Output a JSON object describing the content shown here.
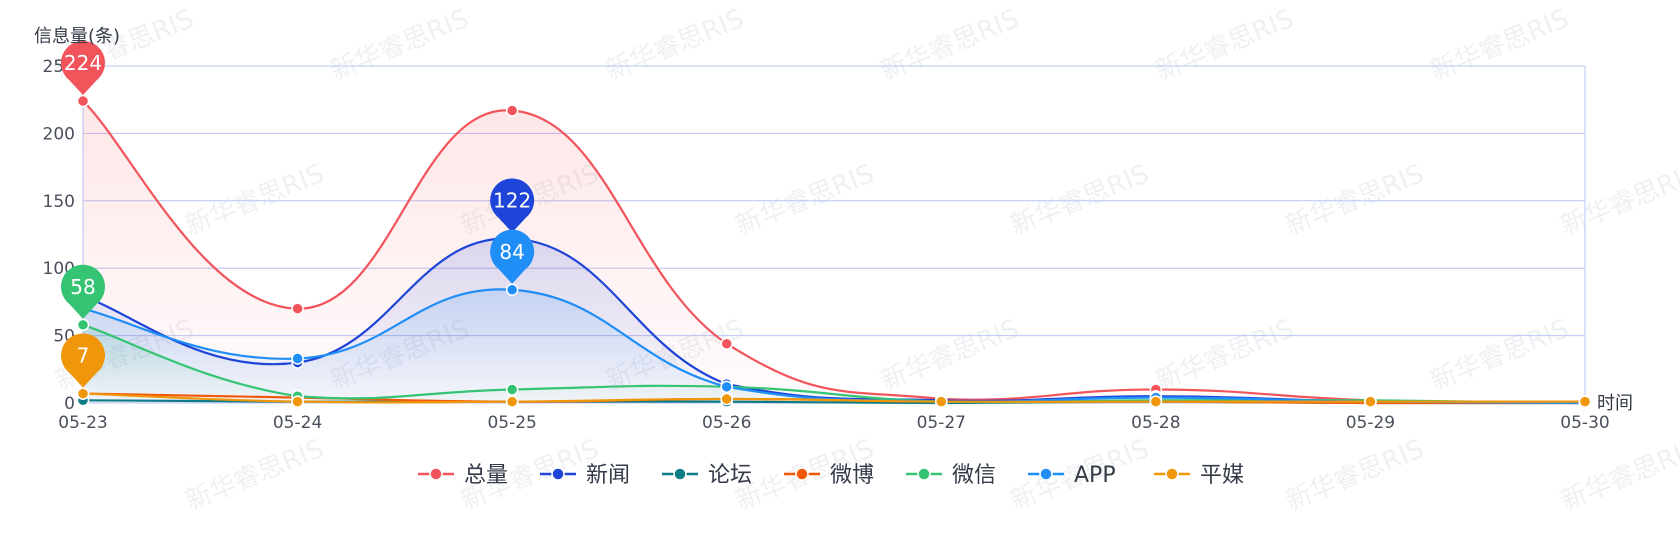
{
  "chart_data": {
    "type": "line",
    "title": "",
    "ylabel": "信息量(条)",
    "xlabel": "时间",
    "categories": [
      "05-23",
      "05-24",
      "05-25",
      "05-26",
      "05-27",
      "05-28",
      "05-29",
      "05-30"
    ],
    "ylim": [
      0,
      250
    ],
    "yticks": [
      0,
      50,
      100,
      150,
      200,
      250
    ],
    "grid": true,
    "legend_position": "bottom",
    "series": [
      {
        "name": "总量",
        "color": "#f2545b",
        "values": [
          224,
          70,
          217,
          44,
          3,
          10,
          2,
          0
        ],
        "area": true,
        "peak_label": "224"
      },
      {
        "name": "新闻",
        "color": "#1e44d8",
        "values": [
          79,
          30,
          122,
          14,
          2,
          5,
          1,
          0
        ],
        "area": true,
        "peak_label": "122"
      },
      {
        "name": "论坛",
        "color": "#0e7c86",
        "values": [
          2,
          1,
          1,
          1,
          0,
          1,
          0,
          0
        ],
        "area": false
      },
      {
        "name": "微博",
        "color": "#f05a0a",
        "values": [
          7,
          4,
          1,
          3,
          1,
          1,
          0,
          0
        ],
        "area": false
      },
      {
        "name": "微信",
        "color": "#34c473",
        "values": [
          58,
          5,
          10,
          12,
          1,
          2,
          2,
          0
        ],
        "area": true,
        "peak_label": "58"
      },
      {
        "name": "APP",
        "color": "#1f8ef6",
        "values": [
          70,
          33,
          84,
          12,
          1,
          4,
          1,
          0
        ],
        "area": true,
        "peak_label": "84"
      },
      {
        "name": "平媒",
        "color": "#f0960a",
        "values": [
          7,
          1,
          1,
          3,
          1,
          1,
          1,
          1
        ],
        "area": false,
        "peak_label": "7"
      }
    ],
    "watermark": "新华睿思RIS"
  }
}
